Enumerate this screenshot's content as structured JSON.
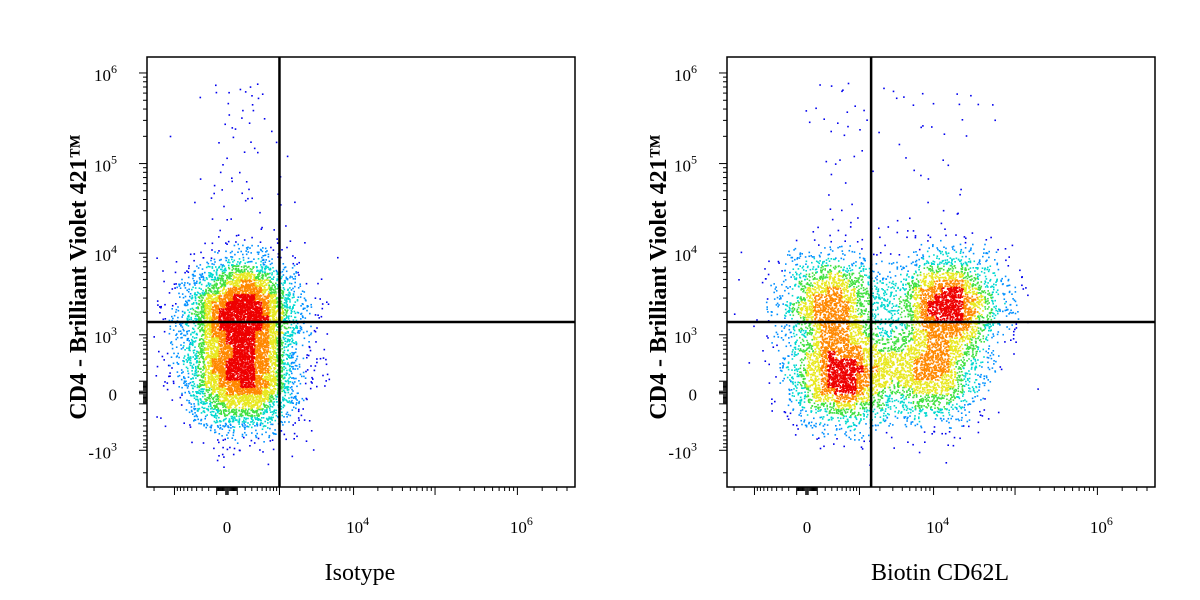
{
  "chart_data": [
    {
      "type": "scatter",
      "style": "density-colored flow cytometry dot plot with quadrant gate",
      "xlabel": "Isotype",
      "ylabel": "CD4 - Brilliant Violet 421™",
      "x_scale": "biexponential (logicle)",
      "y_scale": "biexponential (logicle)",
      "x_ticks": [
        {
          "value": 0,
          "base": "0",
          "exp": ""
        },
        {
          "value": 10000,
          "base": "10",
          "exp": "4"
        },
        {
          "value": 1000000,
          "base": "10",
          "exp": "6"
        }
      ],
      "y_ticks": [
        {
          "value": -1000,
          "base": "-10",
          "exp": "3"
        },
        {
          "value": 0,
          "base": "0",
          "exp": ""
        },
        {
          "value": 1000,
          "base": "10",
          "exp": "3"
        },
        {
          "value": 10000,
          "base": "10",
          "exp": "4"
        },
        {
          "value": 100000,
          "base": "10",
          "exp": "5"
        },
        {
          "value": 1000000,
          "base": "10",
          "exp": "6"
        }
      ],
      "quadrant_gate": {
        "x": 1000,
        "y": 1500
      },
      "populations": [
        {
          "description": "CD4+ cells, isotype negative",
          "x_center": 150,
          "y_center": 2000,
          "relative_size": 0.55
        },
        {
          "description": "CD4- cells, isotype negative",
          "x_center": 150,
          "y_center": 150,
          "relative_size": 0.45
        }
      ],
      "density_colors": [
        "#0000ee",
        "#0090ff",
        "#00d8d0",
        "#40e040",
        "#e8e820",
        "#ff8800",
        "#ee0000"
      ]
    },
    {
      "type": "scatter",
      "style": "density-colored flow cytometry dot plot with quadrant gate",
      "xlabel": "Biotin CD62L",
      "ylabel": "CD4 - Brilliant Violet 421™",
      "x_scale": "biexponential (logicle)",
      "y_scale": "biexponential (logicle)",
      "x_ticks": [
        {
          "value": 0,
          "base": "0",
          "exp": ""
        },
        {
          "value": 10000,
          "base": "10",
          "exp": "4"
        },
        {
          "value": 1000000,
          "base": "10",
          "exp": "6"
        }
      ],
      "y_ticks": [
        {
          "value": -1000,
          "base": "-10",
          "exp": "3"
        },
        {
          "value": 0,
          "base": "0",
          "exp": ""
        },
        {
          "value": 1000,
          "base": "10",
          "exp": "3"
        },
        {
          "value": 10000,
          "base": "10",
          "exp": "4"
        },
        {
          "value": 100000,
          "base": "10",
          "exp": "5"
        },
        {
          "value": 1000000,
          "base": "10",
          "exp": "6"
        }
      ],
      "quadrant_gate": {
        "x": 1500,
        "y": 1500
      },
      "populations": [
        {
          "description": "CD4+ CD62L+",
          "x_center": 15000,
          "y_center": 2500,
          "relative_size": 0.3
        },
        {
          "description": "CD4+ CD62L-",
          "x_center": 300,
          "y_center": 2500,
          "relative_size": 0.2
        },
        {
          "description": "CD4- CD62L-",
          "x_center": 500,
          "y_center": 200,
          "relative_size": 0.3
        },
        {
          "description": "CD4- CD62L+",
          "x_center": 8000,
          "y_center": 200,
          "relative_size": 0.2
        }
      ],
      "density_colors": [
        "#0000ee",
        "#0090ff",
        "#00d8d0",
        "#40e040",
        "#e8e820",
        "#ff8800",
        "#ee0000"
      ]
    }
  ]
}
